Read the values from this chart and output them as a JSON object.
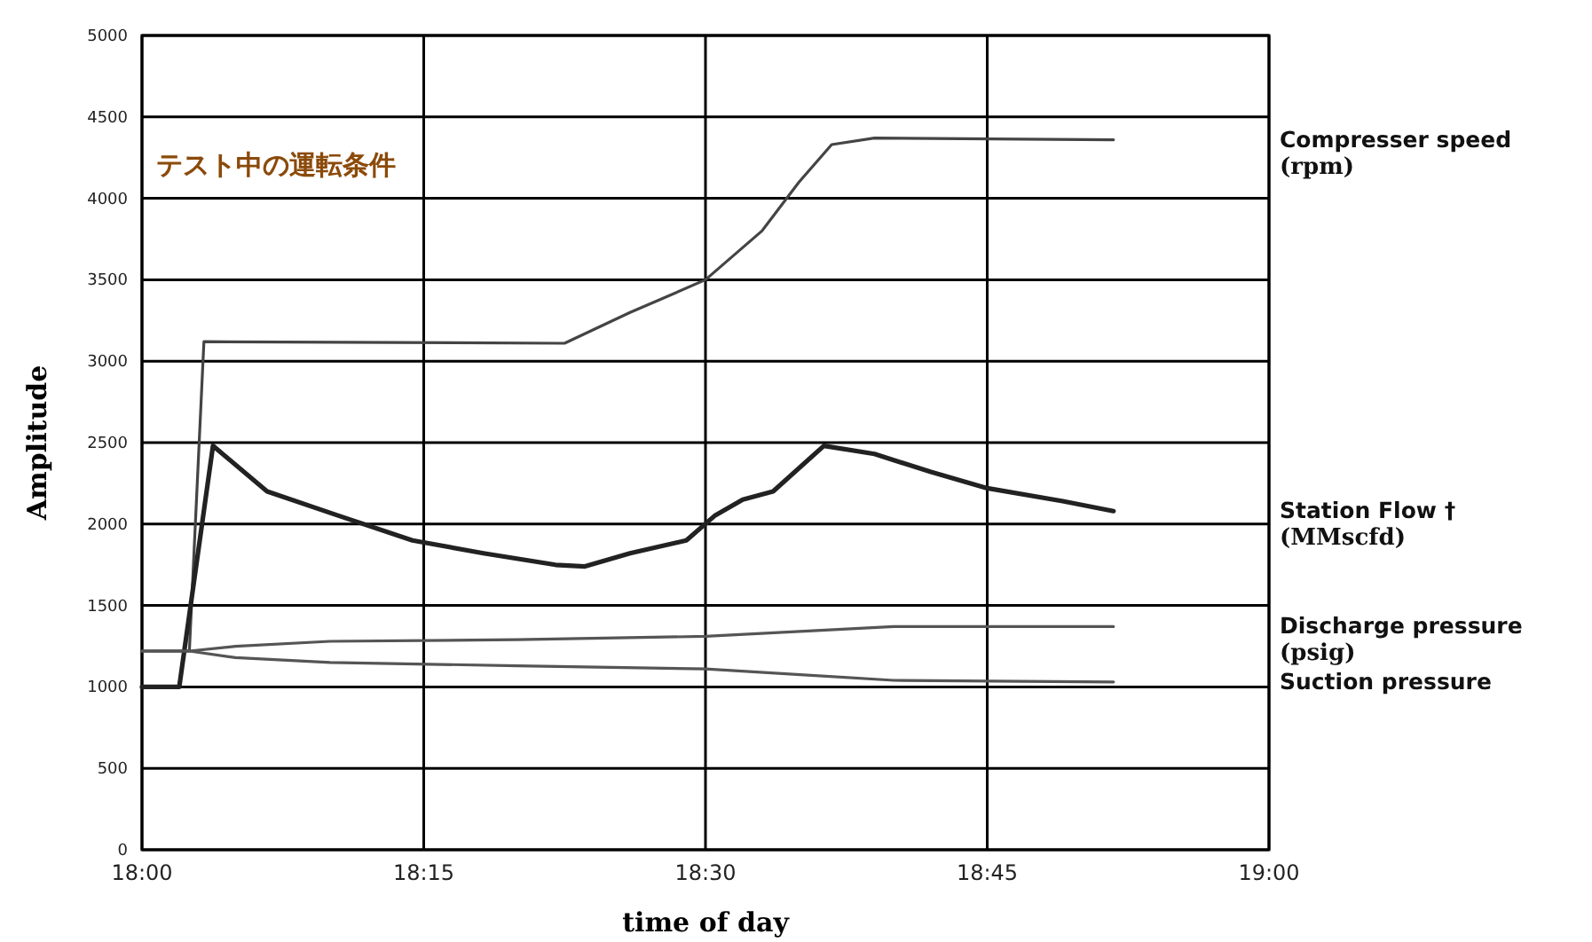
{
  "chart_data": {
    "type": "line",
    "xlabel": "time of day",
    "ylabel": "Amplitude",
    "annotations": [
      "テスト中の運転条件",
      "(rpm)",
      "(MMscfd)",
      "(psig)"
    ],
    "xlim": [
      18,
      19
    ],
    "xticks": [
      {
        "value": 18,
        "label": "18:00"
      },
      {
        "value": 18.25,
        "label": "18:15"
      },
      {
        "value": 18.5,
        "label": "18:30"
      },
      {
        "value": 18.75,
        "label": "18:45"
      },
      {
        "value": 19,
        "label": "19:00"
      }
    ],
    "ylim": [
      0,
      5000
    ],
    "yticks": [
      0,
      500,
      1000,
      1500,
      2000,
      2500,
      3000,
      3500,
      4000,
      4500,
      5000
    ],
    "grid": true,
    "series": [
      {
        "name": "Compresser speed",
        "color": "#444444",
        "x": [
          18.0,
          18.042,
          18.055,
          18.375,
          18.433,
          18.467,
          18.5,
          18.55,
          18.583,
          18.612,
          18.65,
          18.862
        ],
        "values": [
          1220,
          1220,
          3120,
          3110,
          3300,
          3400,
          3500,
          3800,
          4100,
          4330,
          4370,
          4360
        ]
      },
      {
        "name": "Station Flow †",
        "color": "#222222",
        "x": [
          18.0,
          18.033,
          18.063,
          18.111,
          18.175,
          18.24,
          18.303,
          18.367,
          18.393,
          18.433,
          18.483,
          18.508,
          18.533,
          18.56,
          18.605,
          18.65,
          18.7,
          18.75,
          18.817,
          18.862
        ],
        "values": [
          1000,
          1000,
          2480,
          2200,
          2050,
          1900,
          1820,
          1750,
          1740,
          1820,
          1900,
          2050,
          2150,
          2200,
          2480,
          2430,
          2320,
          2220,
          2140,
          2080
        ]
      },
      {
        "name": "Discharge pressure",
        "color": "#555555",
        "x": [
          18.0,
          18.042,
          18.083,
          18.167,
          18.333,
          18.5,
          18.667,
          18.862
        ],
        "values": [
          1220,
          1220,
          1250,
          1280,
          1290,
          1310,
          1370,
          1370
        ]
      },
      {
        "name": "Suction pressure",
        "color": "#555555",
        "x": [
          18.0,
          18.042,
          18.083,
          18.167,
          18.333,
          18.5,
          18.667,
          18.862
        ],
        "values": [
          1220,
          1220,
          1180,
          1150,
          1130,
          1110,
          1040,
          1030
        ]
      }
    ]
  }
}
